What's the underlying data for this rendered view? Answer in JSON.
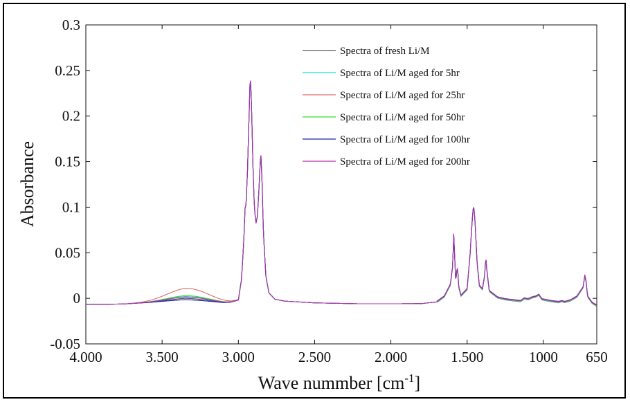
{
  "chart_data": {
    "type": "line",
    "title": "",
    "xlabel": "Wave nummber [cm",
    "xlabel_sup": "-1",
    "xlabel_close": "]",
    "ylabel": "Absorbance",
    "x_reversed": true,
    "xlim": [
      4000,
      650
    ],
    "ylim": [
      -0.05,
      0.3
    ],
    "grid": false,
    "legend_position": "top-right",
    "x_ticks": [
      4000,
      3500,
      3000,
      2500,
      2000,
      1500,
      1000,
      650
    ],
    "x_tick_labels": [
      "4.000",
      "3.500",
      "3.000",
      "2.500",
      "2.000",
      "1.500",
      "1000",
      "650"
    ],
    "y_ticks": [
      -0.05,
      0,
      0.05,
      0.1,
      0.15,
      0.2,
      0.25,
      0.3
    ],
    "y_tick_labels": [
      "-0.05",
      "0",
      "0.05",
      "0.1",
      "0.15",
      "0.2",
      "0.25",
      "0.3"
    ],
    "base_spectrum": [
      [
        4000,
        -0.0065
      ],
      [
        3850,
        -0.0065
      ],
      [
        3750,
        -0.0062
      ],
      [
        3500,
        -0.004
      ],
      [
        3350,
        -0.003
      ],
      [
        3200,
        -0.004
      ],
      [
        3100,
        -0.005
      ],
      [
        3050,
        -0.0045
      ],
      [
        3000,
        -0.002
      ],
      [
        2980,
        0.02
      ],
      [
        2965,
        0.06
      ],
      [
        2955,
        0.103
      ],
      [
        2950,
        0.1
      ],
      [
        2940,
        0.14
      ],
      [
        2930,
        0.2
      ],
      [
        2922,
        0.245
      ],
      [
        2915,
        0.22
      ],
      [
        2905,
        0.15
      ],
      [
        2895,
        0.1
      ],
      [
        2885,
        0.082
      ],
      [
        2875,
        0.09
      ],
      [
        2865,
        0.12
      ],
      [
        2853,
        0.16
      ],
      [
        2845,
        0.13
      ],
      [
        2835,
        0.07
      ],
      [
        2820,
        0.025
      ],
      [
        2800,
        0.006
      ],
      [
        2760,
        -0.001
      ],
      [
        2700,
        -0.003
      ],
      [
        2500,
        -0.005
      ],
      [
        2200,
        -0.006
      ],
      [
        2000,
        -0.006
      ],
      [
        1800,
        -0.0058
      ],
      [
        1700,
        -0.004
      ],
      [
        1650,
        0.002
      ],
      [
        1610,
        0.015
      ],
      [
        1595,
        0.035
      ],
      [
        1588,
        0.07
      ],
      [
        1580,
        0.04
      ],
      [
        1575,
        0.018
      ],
      [
        1568,
        0.03
      ],
      [
        1562,
        0.033
      ],
      [
        1555,
        0.012
      ],
      [
        1540,
        0.003
      ],
      [
        1500,
        0.01
      ],
      [
        1480,
        0.05
      ],
      [
        1465,
        0.09
      ],
      [
        1458,
        0.102
      ],
      [
        1450,
        0.09
      ],
      [
        1435,
        0.04
      ],
      [
        1420,
        0.014
      ],
      [
        1400,
        0.01
      ],
      [
        1385,
        0.025
      ],
      [
        1378,
        0.045
      ],
      [
        1370,
        0.03
      ],
      [
        1355,
        0.008
      ],
      [
        1300,
        0.001
      ],
      [
        1250,
        -0.001
      ],
      [
        1200,
        -0.002
      ],
      [
        1150,
        -0.003
      ],
      [
        1125,
        0.0
      ],
      [
        1100,
        -0.001
      ],
      [
        1075,
        0.001
      ],
      [
        1050,
        0.002
      ],
      [
        1030,
        0.004
      ],
      [
        1010,
        -0.001
      ],
      [
        950,
        -0.003
      ],
      [
        900,
        -0.004
      ],
      [
        880,
        -0.003
      ],
      [
        860,
        -0.004
      ],
      [
        820,
        -0.002
      ],
      [
        780,
        0.002
      ],
      [
        740,
        0.012
      ],
      [
        728,
        0.025
      ],
      [
        720,
        0.018
      ],
      [
        710,
        0.002
      ],
      [
        680,
        -0.005
      ],
      [
        650,
        -0.008
      ]
    ],
    "series": [
      {
        "name": "Spectra of fresh Li/M",
        "color": "#555555",
        "oh_bump": 0.003
      },
      {
        "name": "Spectra of Li/M aged for 5hr",
        "color": "#22e0d8",
        "oh_bump": 0.005
      },
      {
        "name": "Spectra of Li/M aged for 25hr",
        "color": "#e06a6a",
        "oh_bump": 0.014
      },
      {
        "name": "Spectra of Li/M aged for 50hr",
        "color": "#2ee02e",
        "oh_bump": 0.006
      },
      {
        "name": "Spectra of Li/M aged for 100hr",
        "color": "#1a1ab8",
        "oh_bump": 0.0015
      },
      {
        "name": "Spectra of Li/M aged for 200hr",
        "color": "#b030b0",
        "oh_bump": 0.0045
      }
    ]
  }
}
